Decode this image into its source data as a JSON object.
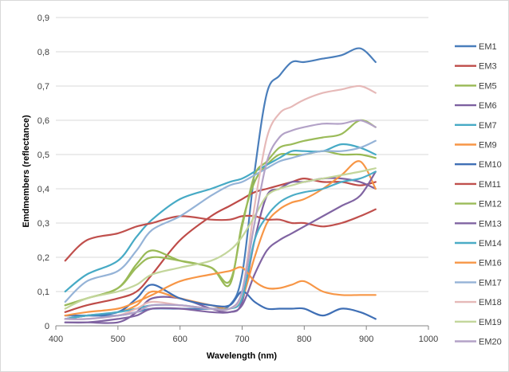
{
  "chart_data": {
    "type": "line",
    "xlabel": "Wavelength (nm)",
    "ylabel": "Emdmembers (reflectance)",
    "xlim": [
      400,
      1000
    ],
    "ylim": [
      0,
      0.9
    ],
    "x_ticks": [
      "400",
      "500",
      "600",
      "700",
      "800",
      "900",
      "1000"
    ],
    "y_ticks": [
      "0",
      "0,1",
      "0,2",
      "0,3",
      "0,4",
      "0,5",
      "0,6",
      "0,7",
      "0,8",
      "0,9"
    ],
    "grid": "horizontal",
    "legend_position": "right",
    "x": [
      415,
      450,
      500,
      530,
      555,
      600,
      650,
      680,
      700,
      720,
      740,
      760,
      780,
      800,
      830,
      860,
      890,
      915
    ],
    "series": [
      {
        "name": "EM1",
        "color": "#4a7ebb",
        "values": [
          0.03,
          0.03,
          0.03,
          0.04,
          0.05,
          0.05,
          0.05,
          0.06,
          0.15,
          0.45,
          0.68,
          0.73,
          0.77,
          0.77,
          0.78,
          0.79,
          0.81,
          0.77
        ]
      },
      {
        "name": "EM3",
        "color": "#be4b48",
        "values": [
          0.04,
          0.06,
          0.08,
          0.1,
          0.15,
          0.25,
          0.32,
          0.35,
          0.37,
          0.39,
          0.4,
          0.41,
          0.42,
          0.43,
          0.42,
          0.42,
          0.41,
          0.42
        ]
      },
      {
        "name": "EM5",
        "color": "#98b954",
        "values": [
          0.06,
          0.08,
          0.11,
          0.18,
          0.22,
          0.19,
          0.17,
          0.12,
          0.3,
          0.42,
          0.47,
          0.5,
          0.5,
          0.5,
          0.51,
          0.5,
          0.5,
          0.49
        ]
      },
      {
        "name": "EM6",
        "color": "#7d60a0",
        "values": [
          0.01,
          0.01,
          0.01,
          0.04,
          0.08,
          0.08,
          0.05,
          0.04,
          0.07,
          0.25,
          0.38,
          0.4,
          0.42,
          0.42,
          0.43,
          0.43,
          0.42,
          0.4
        ]
      },
      {
        "name": "EM7",
        "color": "#46aac5",
        "values": [
          0.1,
          0.15,
          0.19,
          0.26,
          0.31,
          0.37,
          0.4,
          0.42,
          0.43,
          0.45,
          0.47,
          0.49,
          0.51,
          0.51,
          0.51,
          0.53,
          0.52,
          0.5
        ]
      },
      {
        "name": "EM9",
        "color": "#f79646",
        "values": [
          0.02,
          0.03,
          0.04,
          0.06,
          0.1,
          0.08,
          0.06,
          0.05,
          0.08,
          0.2,
          0.3,
          0.34,
          0.36,
          0.37,
          0.4,
          0.44,
          0.48,
          0.4
        ]
      },
      {
        "name": "EM10",
        "color": "#3f6fb5",
        "values": [
          0.02,
          0.03,
          0.04,
          0.08,
          0.12,
          0.08,
          0.06,
          0.06,
          0.1,
          0.07,
          0.05,
          0.05,
          0.05,
          0.05,
          0.03,
          0.05,
          0.04,
          0.02
        ]
      },
      {
        "name": "EM11",
        "color": "#c0504d",
        "values": [
          0.19,
          0.25,
          0.27,
          0.29,
          0.3,
          0.32,
          0.31,
          0.31,
          0.32,
          0.32,
          0.31,
          0.31,
          0.3,
          0.3,
          0.29,
          0.3,
          0.32,
          0.34
        ]
      },
      {
        "name": "EM12",
        "color": "#9bbb59",
        "values": [
          0.06,
          0.08,
          0.11,
          0.17,
          0.2,
          0.19,
          0.17,
          0.13,
          0.29,
          0.44,
          0.48,
          0.52,
          0.53,
          0.54,
          0.55,
          0.56,
          0.6,
          0.58
        ]
      },
      {
        "name": "EM13",
        "color": "#8064a2",
        "values": [
          0.01,
          0.01,
          0.02,
          0.03,
          0.05,
          0.05,
          0.04,
          0.04,
          0.06,
          0.15,
          0.22,
          0.25,
          0.27,
          0.29,
          0.32,
          0.35,
          0.38,
          0.45
        ]
      },
      {
        "name": "EM14",
        "color": "#4bacc6",
        "values": [
          0.02,
          0.03,
          0.04,
          0.05,
          0.06,
          0.06,
          0.05,
          0.05,
          0.08,
          0.25,
          0.32,
          0.36,
          0.38,
          0.39,
          0.4,
          0.42,
          0.43,
          0.45
        ]
      },
      {
        "name": "EM16",
        "color": "#f79646",
        "values": [
          0.03,
          0.04,
          0.05,
          0.07,
          0.09,
          0.13,
          0.15,
          0.16,
          0.17,
          0.13,
          0.11,
          0.11,
          0.12,
          0.13,
          0.1,
          0.09,
          0.09,
          0.09
        ]
      },
      {
        "name": "EM17",
        "color": "#95b3d7",
        "values": [
          0.07,
          0.13,
          0.16,
          0.22,
          0.28,
          0.32,
          0.38,
          0.41,
          0.42,
          0.44,
          0.46,
          0.48,
          0.49,
          0.5,
          0.51,
          0.51,
          0.52,
          0.54
        ]
      },
      {
        "name": "EM18",
        "color": "#e6b9b8",
        "values": [
          0.02,
          0.02,
          0.03,
          0.05,
          0.07,
          0.06,
          0.05,
          0.05,
          0.1,
          0.35,
          0.55,
          0.62,
          0.64,
          0.66,
          0.68,
          0.69,
          0.7,
          0.68
        ]
      },
      {
        "name": "EM19",
        "color": "#c3d69b",
        "values": [
          0.05,
          0.08,
          0.1,
          0.12,
          0.15,
          0.17,
          0.19,
          0.22,
          0.26,
          0.32,
          0.38,
          0.4,
          0.41,
          0.42,
          0.43,
          0.44,
          0.45,
          0.46
        ]
      },
      {
        "name": "EM20",
        "color": "#b3a2c7",
        "values": [
          0.02,
          0.02,
          0.03,
          0.04,
          0.06,
          0.06,
          0.05,
          0.05,
          0.1,
          0.3,
          0.48,
          0.55,
          0.57,
          0.58,
          0.59,
          0.59,
          0.6,
          0.58
        ]
      }
    ]
  }
}
